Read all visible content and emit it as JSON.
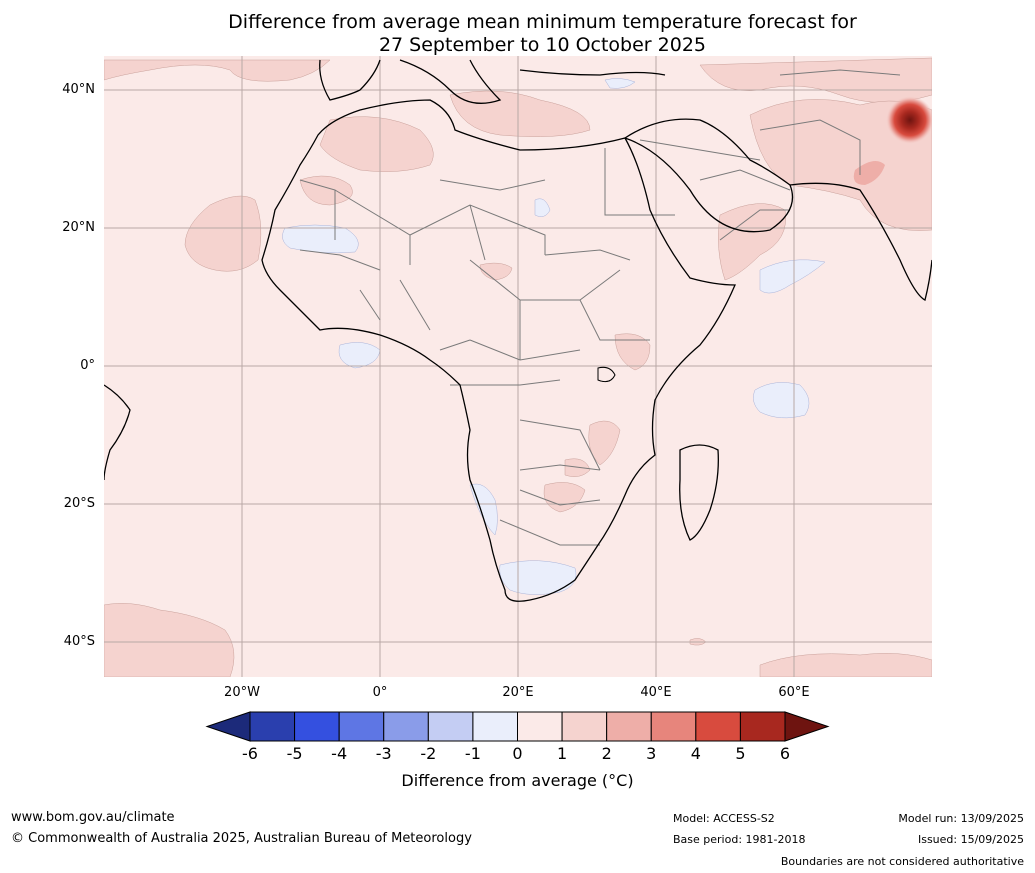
{
  "title_line1": "Difference from average mean minimum temperature forecast for",
  "title_line2": "27 September to 10 October 2025",
  "lat_labels": [
    "40°N",
    "20°N",
    "0°",
    "20°S",
    "40°S"
  ],
  "lon_labels": [
    "20°W",
    "0°",
    "20°E",
    "40°E",
    "60°E"
  ],
  "colorbar": {
    "ticks": [
      "-6",
      "-5",
      "-4",
      "-3",
      "-2",
      "-1",
      "0",
      "1",
      "2",
      "3",
      "4",
      "5",
      "6"
    ],
    "colors": [
      "#1c2a7a",
      "#2a3fae",
      "#3450e0",
      "#5e76e4",
      "#8a9ce9",
      "#c4cdf3",
      "#eaeefb",
      "#fbeae8",
      "#f5d3cf",
      "#eeaea8",
      "#e7857c",
      "#d84b3e",
      "#a8281f",
      "#6e1410"
    ],
    "label": "Difference from average (°C)"
  },
  "footer": {
    "url": "www.bom.gov.au/climate",
    "copyright": "© Commonwealth of Australia 2025, Australian Bureau of Meteorology",
    "model": "Model: ACCESS-S2",
    "base_period": "Base period: 1981-2018",
    "model_run": "Model run: 13/09/2025",
    "issued": "Issued: 15/09/2025",
    "disclaimer": "Boundaries are not considered authoritative"
  }
}
